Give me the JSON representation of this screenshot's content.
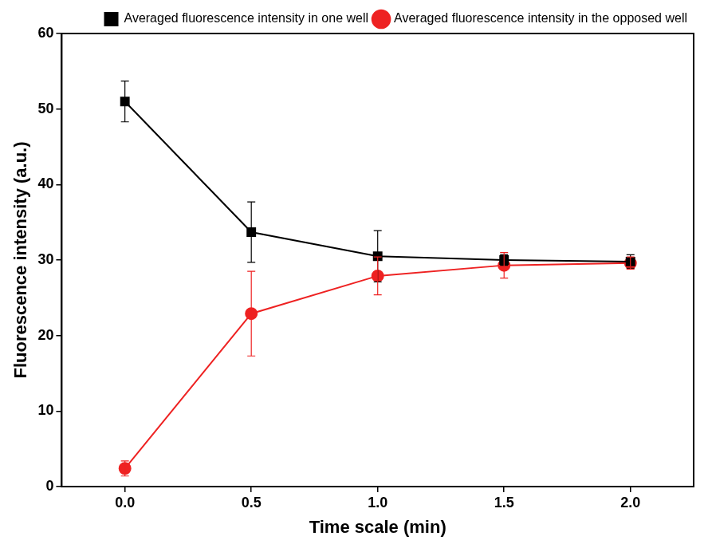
{
  "chart_data": {
    "type": "line",
    "x_label": "Time scale (min)",
    "y_label": "Fluorescence intensity (a.u.)",
    "x": [
      0,
      0.5,
      1,
      1.5,
      2
    ],
    "series": [
      {
        "name": "Averaged fluorescence intensity in one well",
        "color": "#000000",
        "marker": "square",
        "values": [
          51.0,
          33.7,
          30.5,
          30.0,
          29.8
        ],
        "errors": [
          2.7,
          4.0,
          3.4,
          0.7,
          0.9
        ]
      },
      {
        "name": "Averaged fluorescence intensity in the opposed well",
        "color": "#ee2222",
        "marker": "circle",
        "values": [
          2.4,
          22.9,
          27.9,
          29.3,
          29.6
        ],
        "errors": [
          1.0,
          5.6,
          2.5,
          1.7,
          0.8
        ]
      }
    ],
    "xlim": [
      -0.25,
      2.25
    ],
    "xticks": [
      {
        "value": 0,
        "label": "0.0"
      },
      {
        "value": 0.5,
        "label": "0.5"
      },
      {
        "value": 1,
        "label": "1.0"
      },
      {
        "value": 1.5,
        "label": "1.5"
      },
      {
        "value": 2,
        "label": "2.0"
      }
    ],
    "ylim": [
      0,
      60
    ],
    "yticks": [
      0,
      10,
      20,
      30,
      40,
      50,
      60
    ],
    "grid": false,
    "legend": "top"
  }
}
